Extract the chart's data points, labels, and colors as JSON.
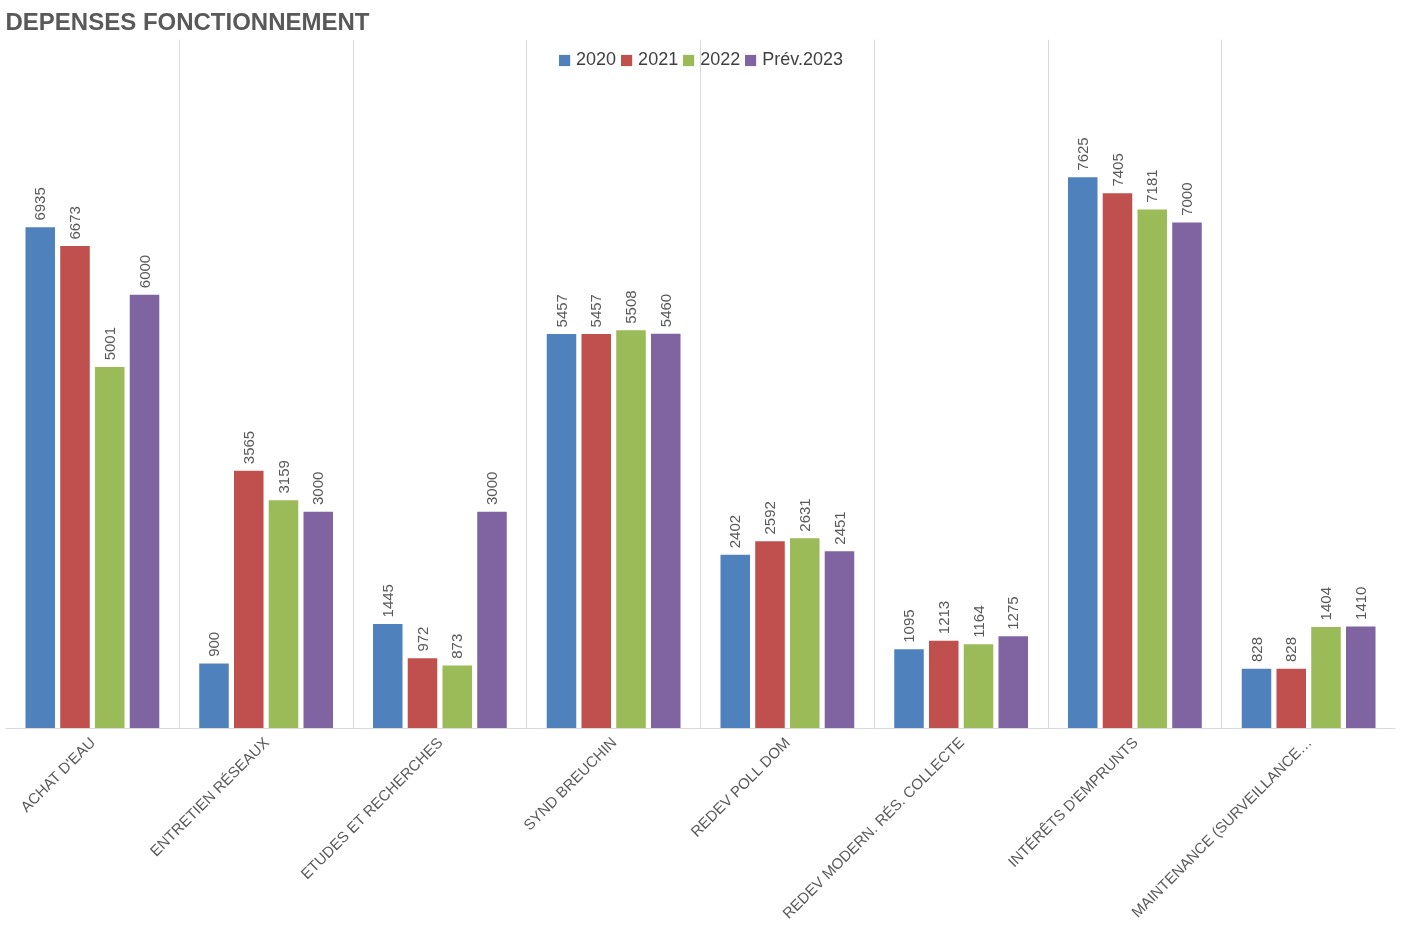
{
  "chart_data": {
    "type": "bar",
    "title": "DEPENSES FONCTIONNEMENT",
    "categories": [
      "ACHAT D'EAU",
      "ENTRETIEN RÉSEAUX",
      "ETUDES ET RECHERCHES",
      "SYND BREUCHIN",
      "REDEV POLL DOM",
      "REDEV MODERN. RÉS. COLLECTE",
      "INTÉRÊTS D'EMPRUNTS",
      "MAINTENANCE (SURVEILLANCE…"
    ],
    "series": [
      {
        "name": "2020",
        "color": "#4f81bd",
        "values": [
          6935,
          900,
          1445,
          5457,
          2402,
          1095,
          7625,
          828
        ]
      },
      {
        "name": "2021",
        "color": "#c0504d",
        "values": [
          6673,
          3565,
          972,
          5457,
          2592,
          1213,
          7405,
          828
        ]
      },
      {
        "name": "2022",
        "color": "#9bbb59",
        "values": [
          5001,
          3159,
          873,
          5508,
          2631,
          1164,
          7181,
          1404
        ]
      },
      {
        "name": "Prév.2023",
        "color": "#8064a2",
        "values": [
          6000,
          3000,
          3000,
          5460,
          2451,
          1275,
          7000,
          1410
        ]
      }
    ],
    "data_labels": true,
    "grid": "x",
    "legend": "top"
  }
}
